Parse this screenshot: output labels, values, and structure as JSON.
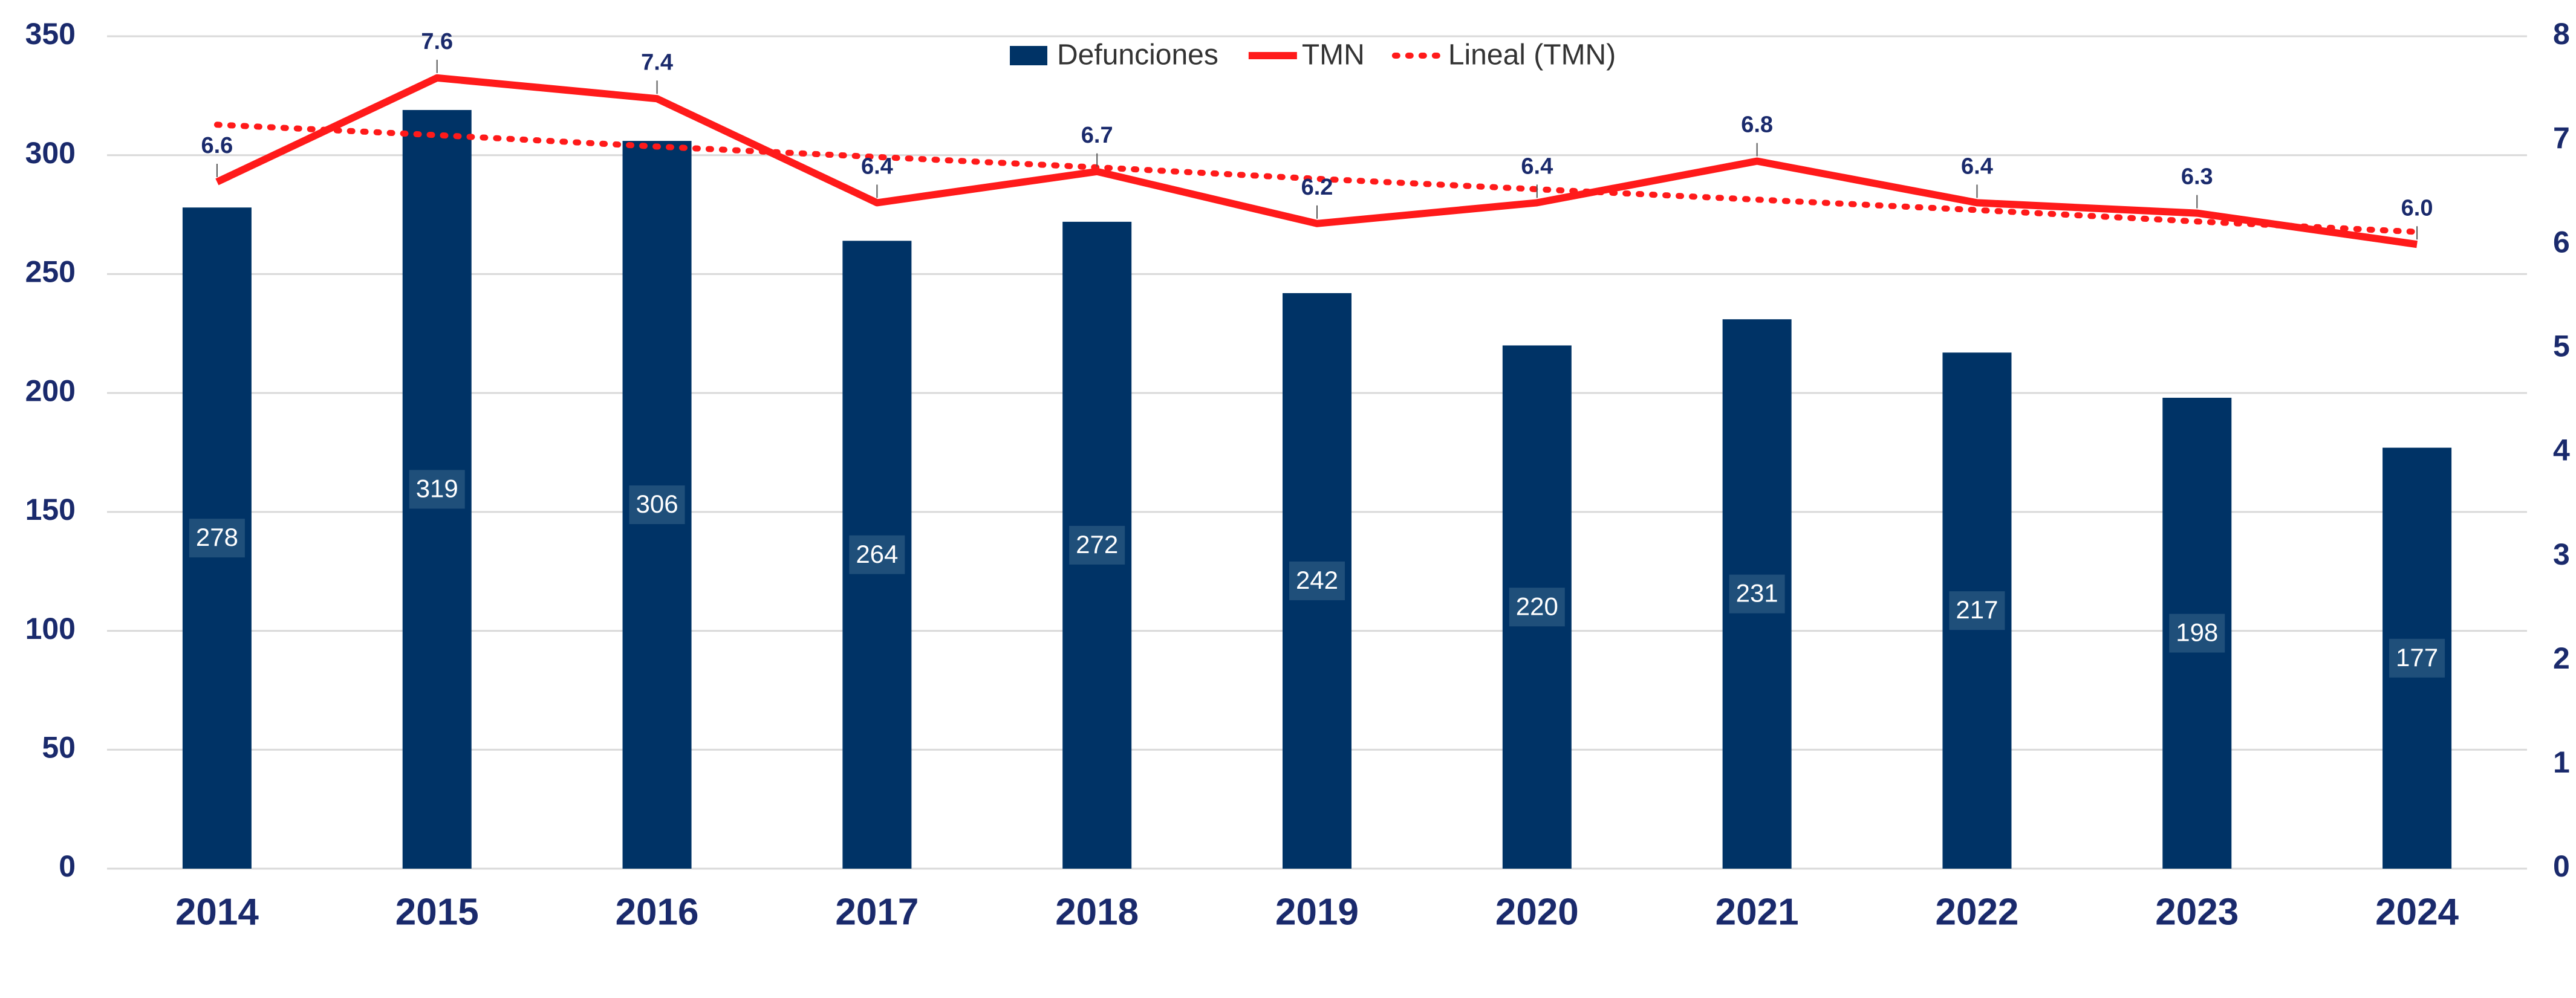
{
  "chart_data": {
    "type": "bar",
    "categories": [
      "2014",
      "2015",
      "2016",
      "2017",
      "2018",
      "2019",
      "2020",
      "2021",
      "2022",
      "2023",
      "2024"
    ],
    "series": [
      {
        "name": "Defunciones",
        "type": "bar",
        "color": "#003366",
        "values": [
          278,
          319,
          306,
          264,
          272,
          242,
          220,
          231,
          217,
          198,
          177
        ]
      },
      {
        "name": "TMN",
        "type": "line",
        "axis": "y2",
        "color": "#ff1a1a",
        "values": [
          6.6,
          7.6,
          7.4,
          6.4,
          6.7,
          6.2,
          6.4,
          6.8,
          6.4,
          6.3,
          6.0
        ],
        "value_labels": [
          "6.6",
          "7.6",
          "7.4",
          "6.4",
          "6.7",
          "6.2",
          "6.4",
          "6.8",
          "6.4",
          "6.3",
          "6.0"
        ]
      },
      {
        "name": "Lineal (TMN)",
        "type": "dotted",
        "axis": "y2",
        "color": "#ff1a1a",
        "values": [
          7.15,
          7.05,
          6.94,
          6.84,
          6.74,
          6.63,
          6.53,
          6.43,
          6.33,
          6.22,
          6.12
        ]
      }
    ],
    "ylim": [
      0,
      350
    ],
    "yticks": [
      0,
      50,
      100,
      150,
      200,
      250,
      300,
      350
    ],
    "y2lim": [
      0,
      8
    ],
    "y2ticks": [
      0,
      1,
      2,
      3,
      4,
      5,
      6,
      7,
      8
    ],
    "grid": true,
    "legend": "top"
  }
}
